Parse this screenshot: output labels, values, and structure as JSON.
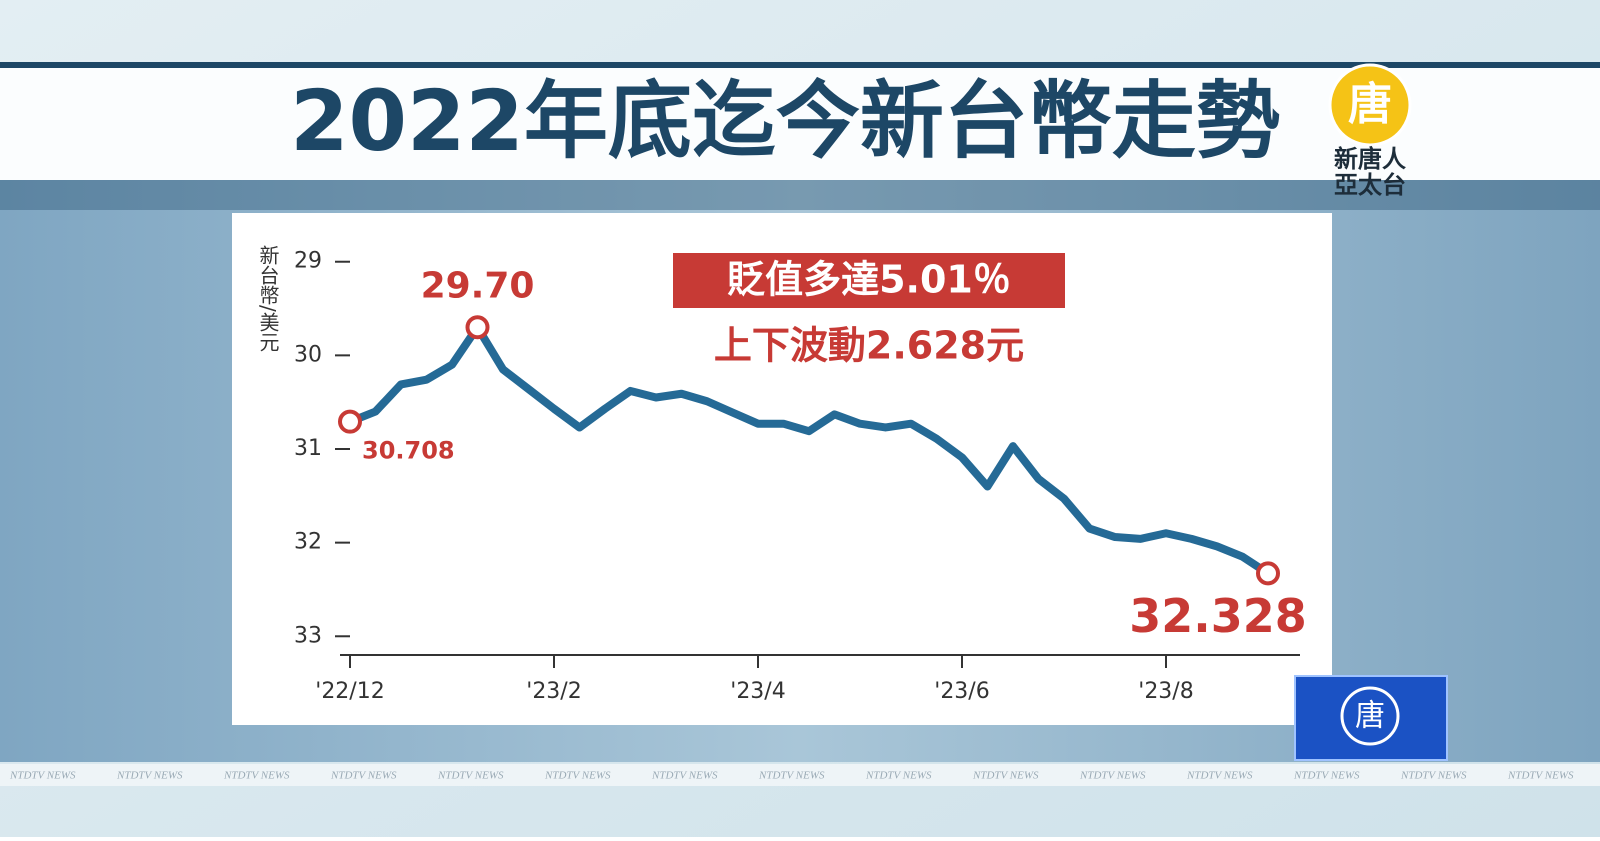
{
  "chart_data": {
    "type": "line",
    "title": "2022年底迄今新台幣走勢",
    "y_label": "新台幣/美元",
    "categories": [
      "'22/12",
      null,
      null,
      null,
      null,
      null,
      null,
      null,
      "'23/2",
      null,
      null,
      null,
      null,
      null,
      null,
      null,
      "'23/4",
      null,
      null,
      null,
      null,
      null,
      null,
      null,
      "'23/6",
      null,
      null,
      null,
      null,
      null,
      null,
      null,
      "'23/8",
      null,
      null,
      null,
      null
    ],
    "values": [
      30.708,
      30.6,
      30.31,
      30.26,
      30.1,
      29.7,
      30.15,
      30.36,
      30.57,
      30.77,
      30.57,
      30.38,
      30.45,
      30.41,
      30.49,
      30.61,
      30.73,
      30.73,
      30.81,
      30.63,
      30.73,
      30.77,
      30.73,
      30.89,
      31.09,
      31.4,
      30.97,
      31.32,
      31.53,
      31.85,
      31.94,
      31.96,
      31.9,
      31.96,
      32.04,
      32.15,
      32.328
    ],
    "value_labels": [
      "30.708",
      null,
      null,
      null,
      null,
      "29.70",
      null,
      null,
      null,
      null,
      null,
      null,
      null,
      null,
      null,
      null,
      null,
      null,
      null,
      null,
      null,
      null,
      null,
      null,
      null,
      null,
      null,
      null,
      null,
      null,
      null,
      null,
      null,
      null,
      null,
      null,
      "32.328"
    ],
    "color": "#256a96",
    "marker_color": "#c73a35",
    "ylim": [
      33.2,
      28.8
    ],
    "yticks": [
      29,
      30,
      31,
      32,
      33
    ],
    "grid": false,
    "annotations": [
      "貶值多達5.01％",
      "上下波動2.628元"
    ]
  },
  "logo": {
    "mark": "唐",
    "line1": "新唐人",
    "line2": "亞太台"
  },
  "ticker": "NTDTV NEWS"
}
